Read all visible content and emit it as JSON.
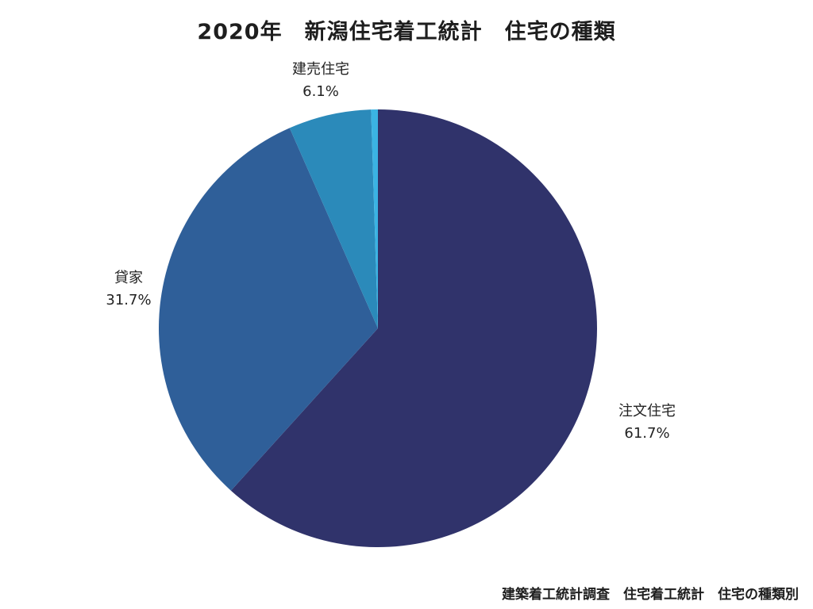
{
  "chart_data": {
    "type": "pie",
    "title": "2020年　新潟住宅着工統計　住宅の種類",
    "slices": [
      {
        "label": "注文住宅",
        "value": 61.7,
        "value_label": "61.7%",
        "color": "#30336b"
      },
      {
        "label": "貸家",
        "value": 31.7,
        "value_label": "31.7%",
        "color": "#2f5f99"
      },
      {
        "label": "建売住宅",
        "value": 6.1,
        "value_label": "6.1%",
        "color": "#2b8aba"
      },
      {
        "label": "",
        "value": 0.5,
        "value_label": "",
        "color": "#3bb3e3"
      }
    ],
    "start_angle_deg": 0,
    "direction": "clockwise",
    "source": "建築着工統計調査　住宅着工統計　住宅の種類別"
  }
}
